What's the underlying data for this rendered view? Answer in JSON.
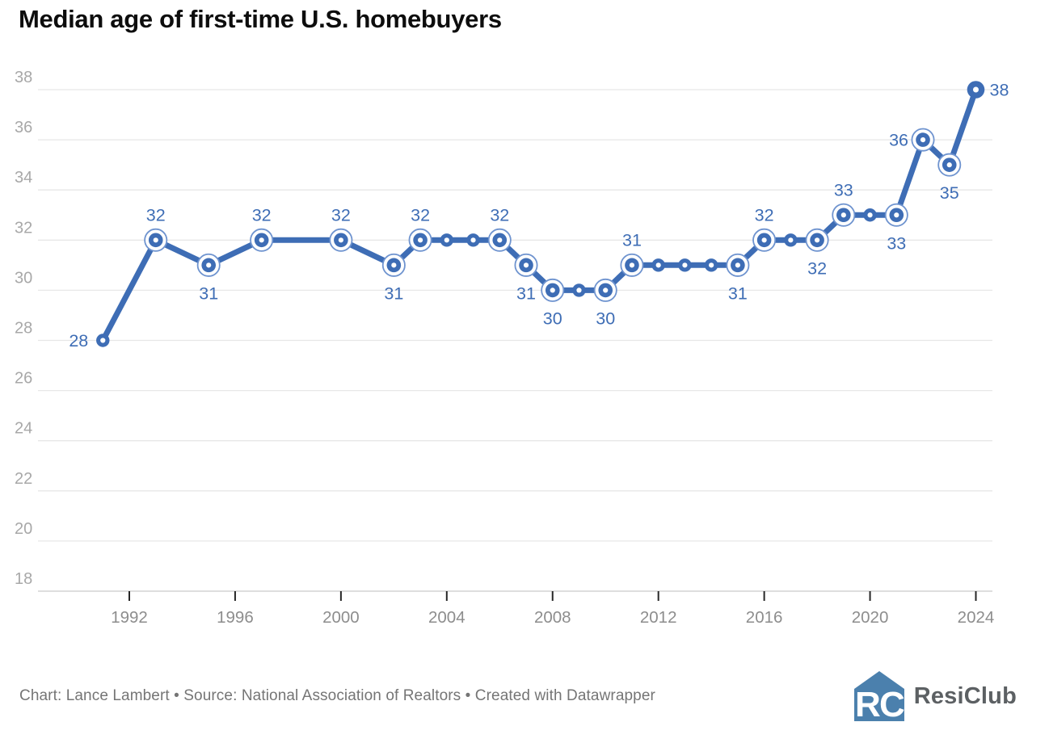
{
  "title": "Median age of first-time U.S. homebuyers",
  "footer": {
    "attribution": "Chart: Lance Lambert • Source: National Association of Realtors • Created with Datawrapper",
    "logo_text": "ResiClub"
  },
  "colors": {
    "line": "#3e6db5",
    "value_label": "#3e6db5",
    "halo_ring": "#6e93cf",
    "grid": "#e7e7e7",
    "baseline": "#c9c9c9",
    "axis_tick": "#262626",
    "y_label": "#a8a8a8",
    "x_label": "#8d8d8d",
    "footer_text": "#757575",
    "logo_blue": "#4b80ad",
    "logo_text_color": "#5c6063"
  },
  "chart_data": {
    "type": "line",
    "title": "Median age of first-time U.S. homebuyers",
    "xlabel": "",
    "ylabel": "",
    "ylim": [
      18,
      38
    ],
    "xlim": [
      1991,
      2024
    ],
    "grid": "horizontal",
    "legend": "none",
    "y_ticks": [
      38,
      36,
      34,
      32,
      30,
      28,
      26,
      24,
      22,
      20,
      18
    ],
    "x_ticks": [
      "1992",
      "1996",
      "2000",
      "2004",
      "2008",
      "2012",
      "2016",
      "2020",
      "2024"
    ],
    "points": [
      {
        "year": 1991,
        "value": 28,
        "label": "28",
        "label_pos": "left",
        "halo": false
      },
      {
        "year": 1993,
        "value": 32,
        "label": "32",
        "label_pos": "above",
        "halo": true
      },
      {
        "year": 1995,
        "value": 31,
        "label": "31",
        "label_pos": "below",
        "halo": true
      },
      {
        "year": 1997,
        "value": 32,
        "label": "32",
        "label_pos": "above",
        "halo": true
      },
      {
        "year": 2000,
        "value": 32,
        "label": "32",
        "label_pos": "above",
        "halo": true
      },
      {
        "year": 2002,
        "value": 31,
        "label": "31",
        "label_pos": "below",
        "halo": true
      },
      {
        "year": 2003,
        "value": 32,
        "label": "32",
        "label_pos": "above",
        "halo": true
      },
      {
        "year": 2004,
        "value": 32,
        "halo": false
      },
      {
        "year": 2005,
        "value": 32,
        "halo": false
      },
      {
        "year": 2006,
        "value": 32,
        "label": "32",
        "label_pos": "above",
        "halo": true
      },
      {
        "year": 2007,
        "value": 31,
        "label": "31",
        "label_pos": "below",
        "halo": true
      },
      {
        "year": 2008,
        "value": 30,
        "label": "30",
        "label_pos": "below",
        "halo": true
      },
      {
        "year": 2009,
        "value": 30,
        "halo": false
      },
      {
        "year": 2010,
        "value": 30,
        "label": "30",
        "label_pos": "below",
        "halo": true
      },
      {
        "year": 2011,
        "value": 31,
        "label": "31",
        "label_pos": "above",
        "halo": true
      },
      {
        "year": 2012,
        "value": 31,
        "halo": false
      },
      {
        "year": 2013,
        "value": 31,
        "halo": false
      },
      {
        "year": 2014,
        "value": 31,
        "halo": false
      },
      {
        "year": 2015,
        "value": 31,
        "label": "31",
        "label_pos": "below",
        "halo": true
      },
      {
        "year": 2016,
        "value": 32,
        "label": "32",
        "label_pos": "above",
        "halo": true
      },
      {
        "year": 2017,
        "value": 32,
        "halo": false
      },
      {
        "year": 2018,
        "value": 32,
        "label": "32",
        "label_pos": "below",
        "halo": true
      },
      {
        "year": 2019,
        "value": 33,
        "label": "33",
        "label_pos": "above",
        "halo": true
      },
      {
        "year": 2020,
        "value": 33,
        "halo": false
      },
      {
        "year": 2021,
        "value": 33,
        "label": "33",
        "label_pos": "below",
        "halo": true
      },
      {
        "year": 2022,
        "value": 36,
        "label": "36",
        "label_pos": "left",
        "halo": true
      },
      {
        "year": 2023,
        "value": 35,
        "label": "35",
        "label_pos": "below",
        "halo": true
      },
      {
        "year": 2024,
        "value": 38,
        "label": "38",
        "label_pos": "right",
        "halo": false,
        "emphasis": true
      }
    ]
  }
}
